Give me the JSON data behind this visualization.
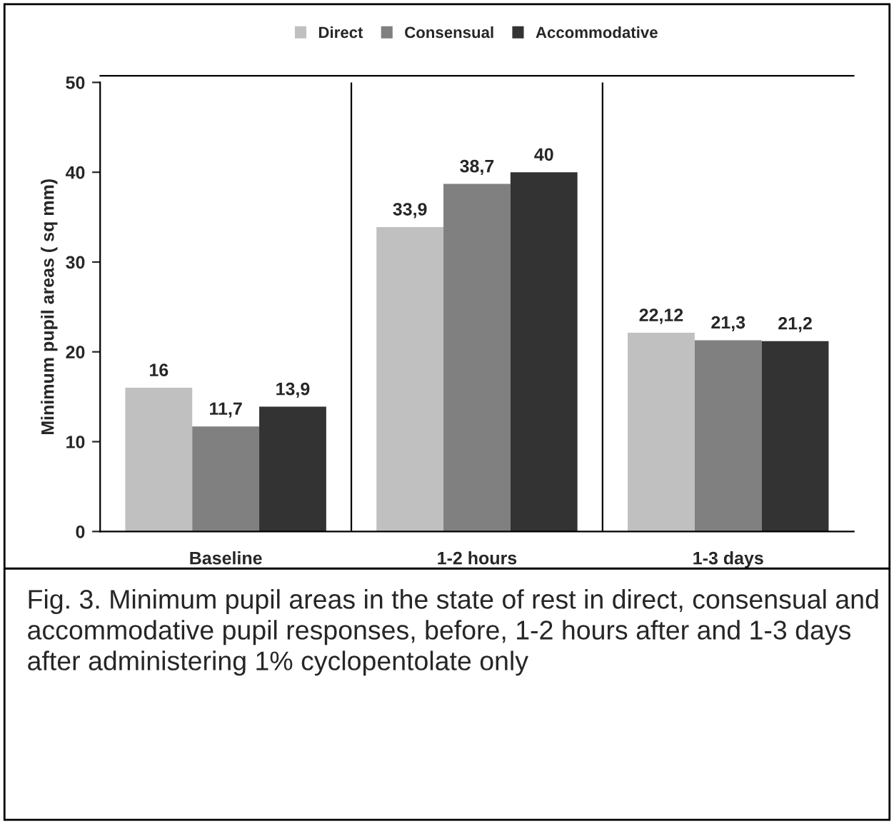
{
  "chart_data": {
    "type": "bar",
    "ylabel": "Minimum pupil areas ( sq mm)",
    "categories": [
      "Baseline",
      "1-2 hours",
      "1-3 days"
    ],
    "series": [
      {
        "name": "Direct",
        "color": "#c0c0c0",
        "values": [
          16,
          33.9,
          22.12
        ],
        "value_labels": [
          "16",
          "33,9",
          "22,12"
        ]
      },
      {
        "name": "Consensual",
        "color": "#808080",
        "values": [
          11.7,
          38.7,
          21.3
        ],
        "value_labels": [
          "11,7",
          "38,7",
          "21,3"
        ]
      },
      {
        "name": "Accommodative",
        "color": "#333333",
        "values": [
          13.9,
          40,
          21.2
        ],
        "value_labels": [
          "13,9",
          "40",
          "21,2"
        ]
      }
    ],
    "ylim": [
      0,
      50
    ],
    "yticks": [
      0,
      10,
      20,
      30,
      40,
      50
    ],
    "grid": "x",
    "legend": "top",
    "annotations": [
      "Fig. 3. Minimum pupil areas in the state of rest in direct, consensual and accommodative pupil responses, before, 1-2 hours after and 1-3 days after administering 1% cyclopentolate only"
    ]
  }
}
